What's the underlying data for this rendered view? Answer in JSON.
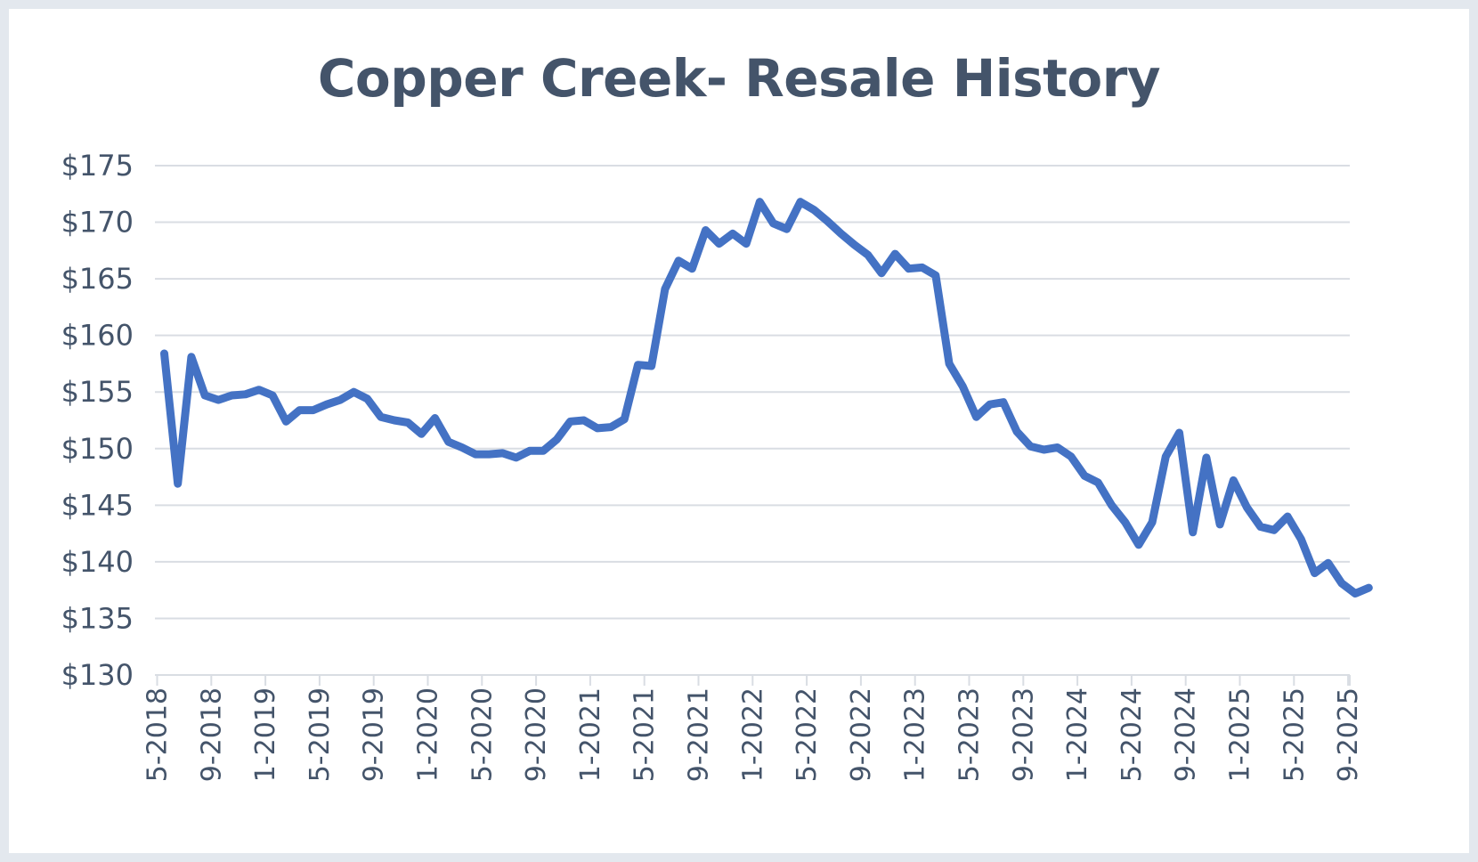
{
  "chart_data": {
    "type": "line",
    "title": "Copper Creek- Resale History",
    "xlabel": "",
    "ylabel": "",
    "ylim": [
      130,
      175
    ],
    "y_ticks": [
      175,
      170,
      165,
      160,
      155,
      150,
      145,
      140,
      135,
      130
    ],
    "y_tick_labels": [
      "$175",
      "$170",
      "$165",
      "$160",
      "$155",
      "$150",
      "$145",
      "$140",
      "$135",
      "$130"
    ],
    "x_tick_labels": [
      "5-2018",
      "9-2018",
      "1-2019",
      "5-2019",
      "9-2019",
      "1-2020",
      "5-2020",
      "9-2020",
      "1-2021",
      "5-2021",
      "9-2021",
      "1-2022",
      "5-2022",
      "9-2022",
      "1-2023",
      "5-2023",
      "9-2023",
      "1-2024",
      "5-2024",
      "9-2024",
      "1-2025",
      "5-2025",
      "9-2025"
    ],
    "grid": true,
    "line_color": "#4472c4",
    "series": [
      {
        "x": [
          "5-2018",
          "6-2018",
          "7-2018",
          "8-2018",
          "9-2018",
          "10-2018",
          "11-2018",
          "12-2018",
          "1-2019",
          "2-2019",
          "3-2019",
          "4-2019",
          "5-2019",
          "6-2019",
          "7-2019",
          "8-2019",
          "9-2019",
          "10-2019",
          "11-2019",
          "12-2019",
          "1-2020",
          "2-2020",
          "3-2020",
          "4-2020",
          "5-2020",
          "6-2020",
          "7-2020",
          "8-2020",
          "9-2020",
          "10-2020",
          "11-2020",
          "12-2020",
          "1-2021",
          "2-2021",
          "3-2021",
          "4-2021",
          "5-2021",
          "6-2021",
          "7-2021",
          "8-2021",
          "9-2021",
          "10-2021",
          "11-2021",
          "12-2021",
          "1-2022",
          "2-2022",
          "3-2022",
          "4-2022",
          "5-2022",
          "6-2022",
          "7-2022",
          "8-2022",
          "9-2022",
          "10-2022",
          "11-2022",
          "12-2022",
          "1-2023",
          "2-2023",
          "3-2023",
          "4-2023",
          "5-2023",
          "6-2023",
          "7-2023",
          "8-2023",
          "9-2023",
          "10-2023",
          "11-2023",
          "12-2023",
          "1-2024",
          "2-2024",
          "3-2024",
          "4-2024",
          "5-2024",
          "6-2024",
          "7-2024",
          "8-2024",
          "9-2024",
          "10-2024",
          "11-2024",
          "12-2024",
          "1-2025",
          "2-2025",
          "3-2025",
          "4-2025",
          "5-2025",
          "6-2025",
          "7-2025",
          "8-2025",
          "9-2025",
          "10-2025"
        ],
        "values": [
          158.4,
          146.9,
          158.1,
          154.7,
          154.3,
          154.7,
          154.8,
          155.2,
          154.7,
          152.4,
          153.4,
          153.4,
          153.9,
          154.3,
          155.0,
          154.4,
          152.8,
          152.5,
          152.3,
          151.3,
          152.7,
          150.6,
          150.1,
          149.5,
          149.5,
          149.6,
          149.2,
          149.8,
          149.8,
          150.8,
          152.4,
          152.5,
          151.8,
          151.9,
          152.6,
          157.4,
          157.3,
          164.1,
          166.6,
          165.9,
          169.3,
          168.1,
          169.0,
          168.1,
          171.8,
          169.9,
          169.4,
          171.8,
          171.1,
          170.1,
          169.0,
          168.0,
          167.1,
          165.5,
          167.2,
          165.9,
          166.0,
          165.3,
          157.5,
          155.5,
          152.8,
          153.9,
          154.1,
          151.5,
          150.2,
          149.9,
          150.1,
          149.3,
          147.6,
          147.0,
          145.0,
          143.5,
          141.5,
          143.5,
          149.3,
          151.4,
          142.6,
          149.2,
          143.3,
          147.2,
          144.8,
          143.1,
          142.8,
          144.0,
          142.0,
          139.0,
          139.9,
          138.1,
          137.2,
          137.7
        ]
      }
    ]
  }
}
